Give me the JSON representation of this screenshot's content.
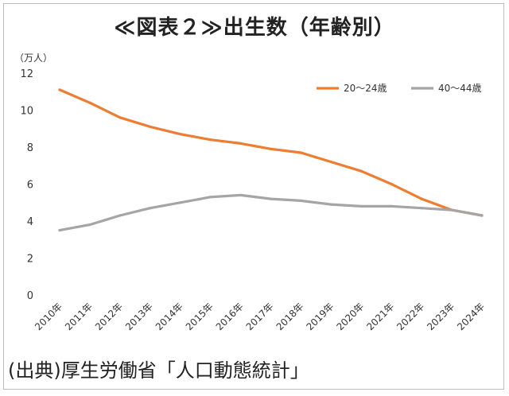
{
  "title": "≪図表２≫出生数（年齢別）",
  "source": "(出典)厚生労働省「人口動態統計」",
  "chart_data": {
    "type": "line",
    "unit_label": "（万人）",
    "x": [
      "2010年",
      "2011年",
      "2012年",
      "2013年",
      "2014年",
      "2015年",
      "2016年",
      "2017年",
      "2018年",
      "2019年",
      "2020年",
      "2021年",
      "2022年",
      "2023年",
      "2024年"
    ],
    "ylim": [
      0,
      12
    ],
    "yticks": [
      0,
      2,
      4,
      6,
      8,
      10,
      12
    ],
    "grid": false,
    "legend_position": "top-right",
    "series": [
      {
        "name": "20～24歳",
        "color": "#ed7d31",
        "values": [
          11.1,
          10.4,
          9.6,
          9.1,
          8.7,
          8.4,
          8.2,
          7.9,
          7.7,
          7.2,
          6.7,
          6.0,
          5.2,
          4.6,
          4.3
        ]
      },
      {
        "name": "40～44歳",
        "color": "#a5a5a5",
        "values": [
          3.5,
          3.8,
          4.3,
          4.7,
          5.0,
          5.3,
          5.4,
          5.2,
          5.1,
          4.9,
          4.8,
          4.8,
          4.7,
          4.6,
          4.3
        ]
      }
    ]
  }
}
